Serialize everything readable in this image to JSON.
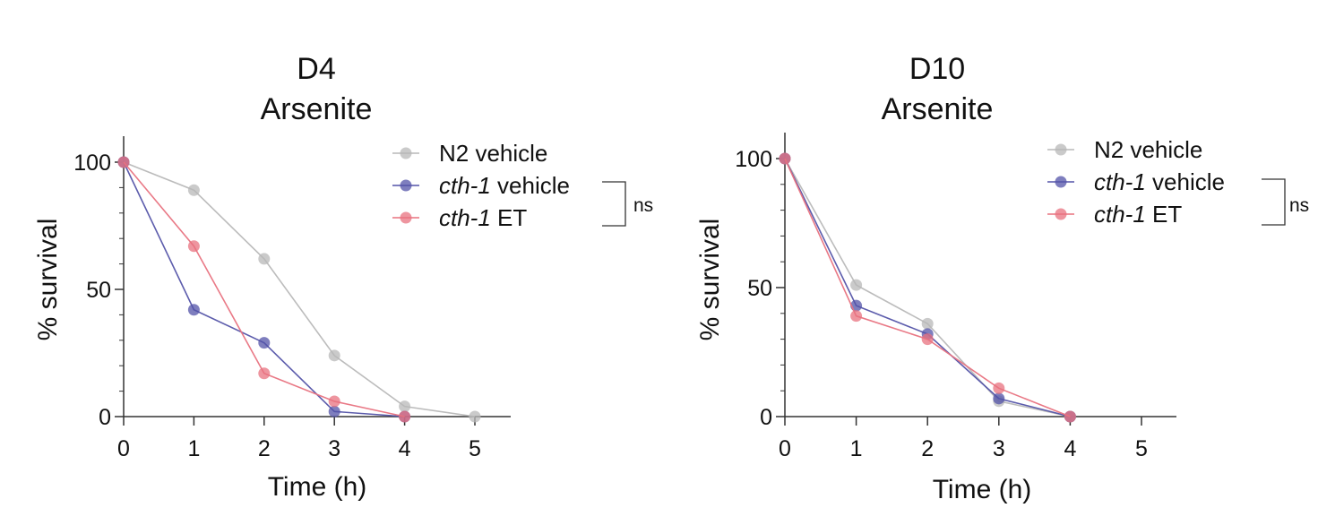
{
  "chart_data": [
    {
      "type": "line",
      "title_line1": "D4",
      "title_line2": "Arsenite",
      "xlabel": "Time (h)",
      "ylabel": "% survival",
      "xlim": [
        0,
        5
      ],
      "ylim": [
        0,
        100
      ],
      "xticks": [
        "0",
        "1",
        "2",
        "3",
        "4",
        "5"
      ],
      "yticks": [
        "0",
        "50",
        "100"
      ],
      "legend_position": "top-right",
      "x": [
        0,
        1,
        2,
        3,
        4,
        5
      ],
      "series": [
        {
          "name_italic": "",
          "name_plain": "N2 vehicle",
          "color": "#b8b8b8",
          "values": [
            100,
            89,
            62,
            24,
            4,
            0
          ]
        },
        {
          "name_italic": "cth-1",
          "name_plain": " vehicle",
          "color": "#5353a8",
          "values": [
            100,
            42,
            29,
            2,
            0,
            null
          ]
        },
        {
          "name_italic": "cth-1",
          "name_plain": " ET",
          "color": "#e8727f",
          "values": [
            100,
            67,
            17,
            6,
            0,
            null
          ]
        }
      ],
      "annotation": "ns"
    },
    {
      "type": "line",
      "title_line1": "D10",
      "title_line2": "Arsenite",
      "xlabel": "Time (h)",
      "ylabel": "% survival",
      "xlim": [
        0,
        5
      ],
      "ylim": [
        0,
        100
      ],
      "xticks": [
        "0",
        "1",
        "2",
        "3",
        "4",
        "5"
      ],
      "yticks": [
        "0",
        "50",
        "100"
      ],
      "legend_position": "top-right",
      "x": [
        0,
        1,
        2,
        3,
        4,
        5
      ],
      "series": [
        {
          "name_italic": "",
          "name_plain": "N2 vehicle",
          "color": "#b8b8b8",
          "values": [
            100,
            51,
            36,
            6,
            0,
            null
          ]
        },
        {
          "name_italic": "cth-1",
          "name_plain": " vehicle",
          "color": "#5353a8",
          "values": [
            100,
            43,
            32,
            7,
            0,
            null
          ]
        },
        {
          "name_italic": "cth-1",
          "name_plain": " ET",
          "color": "#e8727f",
          "values": [
            100,
            39,
            30,
            11,
            0,
            null
          ]
        }
      ],
      "annotation": "ns"
    }
  ]
}
